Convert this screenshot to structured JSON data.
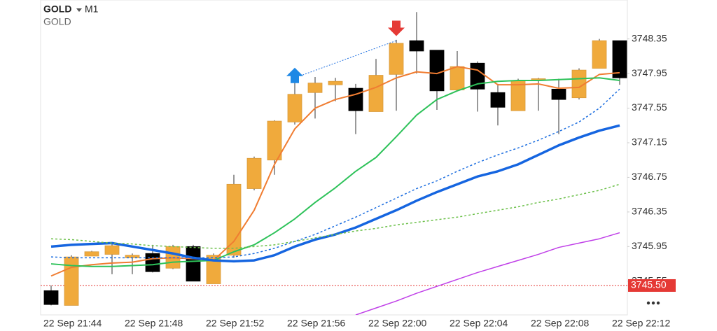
{
  "chart_data": {
    "type": "candlestick",
    "symbol": "GOLD",
    "timeframe": "M1",
    "subtitle": "GOLD",
    "categories": [
      "22 Sep 21:44",
      null,
      null,
      null,
      "22 Sep 21:48",
      null,
      null,
      null,
      "22 Sep 21:52",
      null,
      null,
      null,
      "22 Sep 21:56",
      null,
      null,
      null,
      "22 Sep 22:00",
      null,
      null,
      null,
      "22 Sep 22:04",
      null,
      null,
      null,
      "22 Sep 22:08",
      null,
      null,
      null,
      "22 Sep 22:12"
    ],
    "open": [
      3745.44,
      3745.27,
      3745.84,
      3745.86,
      3745.82,
      3745.87,
      3745.7,
      3745.95,
      3745.52,
      3745.85,
      3746.62,
      3746.95,
      3747.39,
      3747.73,
      3747.82,
      3747.78,
      3747.51,
      3747.94,
      3748.33,
      3748.22,
      3747.76,
      3748.07,
      3747.73,
      3747.52,
      3747.87,
      3747.77,
      3747.67,
      3748.01,
      3748.33
    ],
    "high": [
      3745.5,
      3745.85,
      3745.9,
      3745.98,
      3745.87,
      3745.97,
      3745.97,
      3745.97,
      3745.87,
      3746.78,
      3746.99,
      3747.41,
      3747.91,
      3747.91,
      3747.9,
      3747.83,
      3748.12,
      3748.34,
      3748.66,
      3748.22,
      3748.21,
      3748.09,
      3747.83,
      3747.89,
      3747.9,
      3747.89,
      3748.01,
      3748.35,
      3748.33
    ],
    "low": [
      3745.27,
      3745.27,
      3745.84,
      3745.63,
      3745.63,
      3745.65,
      3745.69,
      3745.55,
      3745.52,
      3745.82,
      3746.6,
      3746.78,
      3747.36,
      3747.43,
      3747.63,
      3747.25,
      3747.51,
      3747.52,
      3747.95,
      3747.53,
      3747.76,
      3747.51,
      3747.35,
      3747.52,
      3747.52,
      3747.25,
      3747.65,
      3748.01,
      3747.82
    ],
    "close": [
      3745.28,
      3745.83,
      3745.89,
      3745.96,
      3745.85,
      3745.66,
      3745.95,
      3745.55,
      3745.85,
      3746.67,
      3746.97,
      3747.4,
      3747.71,
      3747.84,
      3747.86,
      3747.52,
      3747.93,
      3748.3,
      3748.21,
      3747.75,
      3748.03,
      3747.77,
      3747.56,
      3747.87,
      3747.89,
      3747.65,
      3747.99,
      3748.33,
      3747.9
    ],
    "up_color": "#f0aa3c",
    "down_color": "#000000",
    "series": [
      {
        "color": "#f07d32",
        "style": "solid",
        "width": 2,
        "values": [
          3745.61,
          3745.71,
          3745.74,
          3745.76,
          3745.77,
          3745.81,
          3745.82,
          3745.81,
          3745.79,
          3746.01,
          3746.37,
          3746.9,
          3747.31,
          3747.55,
          3747.65,
          3747.71,
          3747.79,
          3747.9,
          3747.97,
          3747.95,
          3748.03,
          3747.99,
          3747.82,
          3747.82,
          3747.83,
          3747.78,
          3747.79,
          3747.94,
          3747.96
        ]
      },
      {
        "color": "#2ec25a",
        "style": "solid",
        "width": 2,
        "values": [
          3745.75,
          3745.73,
          3745.72,
          3745.72,
          3745.73,
          3745.74,
          3745.77,
          3745.78,
          3745.79,
          3745.89,
          3745.97,
          3746.11,
          3746.27,
          3746.46,
          3746.63,
          3746.82,
          3746.98,
          3747.22,
          3747.47,
          3747.65,
          3747.75,
          3747.83,
          3747.86,
          3747.87,
          3747.87,
          3747.88,
          3747.89,
          3747.9,
          3747.87
        ]
      },
      {
        "color": "#1565e0",
        "style": "solid",
        "width": 3.5,
        "values": [
          3745.95,
          3745.97,
          3745.98,
          3745.99,
          3745.95,
          3745.91,
          3745.87,
          3745.82,
          3745.79,
          3745.78,
          3745.79,
          3745.85,
          3745.95,
          3746.03,
          3746.09,
          3746.17,
          3746.27,
          3746.37,
          3746.48,
          3746.58,
          3746.67,
          3746.76,
          3746.82,
          3746.9,
          3747.01,
          3747.12,
          3747.21,
          3747.29,
          3747.35
        ]
      },
      {
        "color": "#1e6fe0",
        "style": "dotted",
        "width": 1.5,
        "values": [
          3745.83,
          3745.82,
          3745.82,
          3745.82,
          3745.82,
          3745.82,
          3745.82,
          3745.82,
          3745.82,
          3745.83,
          3745.87,
          3745.93,
          3746.01,
          3746.09,
          3746.19,
          3746.29,
          3746.4,
          3746.51,
          3746.62,
          3746.71,
          3746.82,
          3746.92,
          3747.01,
          3747.09,
          3747.18,
          3747.28,
          3747.39,
          3747.55,
          3747.77
        ]
      },
      {
        "color": "#6cc04a",
        "style": "dotted",
        "width": 1.5,
        "values": [
          3746.04,
          3746.03,
          3746.01,
          3745.99,
          3745.98,
          3745.96,
          3745.95,
          3745.94,
          3745.93,
          3745.93,
          3745.95,
          3745.97,
          3746.01,
          3746.05,
          3746.09,
          3746.13,
          3746.16,
          3746.2,
          3746.23,
          3746.26,
          3746.29,
          3746.33,
          3746.37,
          3746.41,
          3746.46,
          3746.5,
          3746.55,
          3746.6,
          3746.67
        ]
      },
      {
        "color": "#c040e8",
        "style": "solid",
        "width": 1.5,
        "values": [
          null,
          null,
          null,
          null,
          null,
          null,
          null,
          null,
          null,
          null,
          null,
          null,
          null,
          null,
          null,
          3745.16,
          3745.24,
          3745.32,
          3745.41,
          3745.49,
          3745.57,
          3745.65,
          3745.72,
          3745.79,
          3745.86,
          3745.94,
          3745.99,
          3746.04,
          3746.11
        ]
      }
    ],
    "arrows": [
      {
        "index": 12,
        "price": 3747.92,
        "direction": "up",
        "color": "#1e88e5"
      },
      {
        "index": 17,
        "price": 3748.48,
        "direction": "down",
        "color": "#e53935"
      }
    ],
    "trendline": {
      "from": [
        12,
        3747.9
      ],
      "to": [
        17,
        3748.33
      ],
      "color": "#1e6fe0"
    },
    "price_line": {
      "value": 3745.5,
      "label": "3745.50",
      "color": "#e53935"
    },
    "ylim": [
      3745.16,
      3748.8
    ],
    "yticks": [
      3748.35,
      3747.95,
      3747.55,
      3747.15,
      3746.75,
      3746.35,
      3745.95,
      3745.55
    ],
    "grid": false
  }
}
